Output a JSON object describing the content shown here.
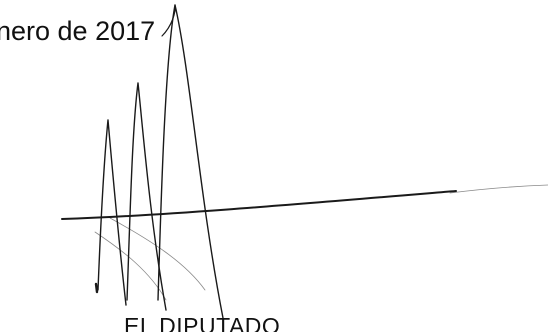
{
  "document": {
    "date_fragment": "nero de 2017",
    "signatory_title": "EL DIPUTADO"
  },
  "signature": {
    "ink_color": "#1a1a1a",
    "faint_ink_color": "#8a8a8a"
  }
}
